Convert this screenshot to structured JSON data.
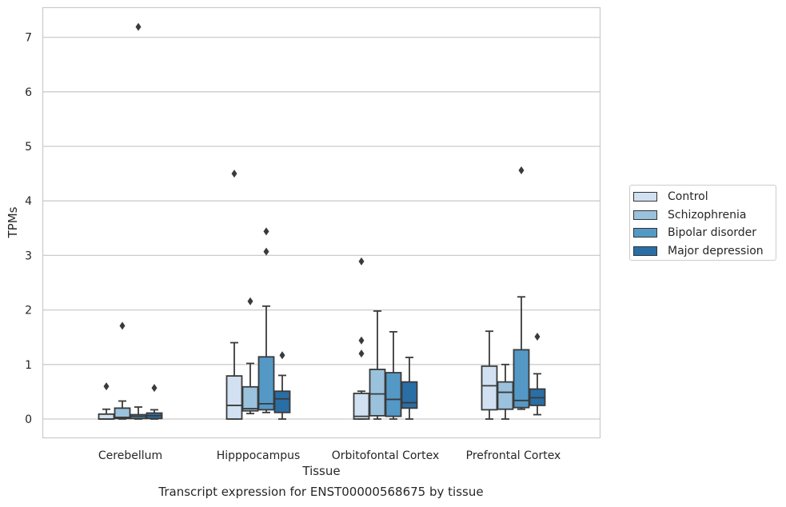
{
  "chart_data": {
    "type": "box",
    "caption": "Transcript expression for ENST00000568675 by tissue",
    "xlabel": "Tissue",
    "ylabel": "TPMs",
    "ylim": [
      -0.35,
      7.55
    ],
    "yticks": [
      0,
      1,
      2,
      3,
      4,
      5,
      6,
      7
    ],
    "grid": "horizontal",
    "legend_position": "right",
    "categories": [
      "Cerebellum",
      "Hipppocampus",
      "Orbitofontal Cortex",
      "Prefrontal Cortex"
    ],
    "series": [
      {
        "name": "Control",
        "color": "#d1e1f1",
        "boxes": [
          {
            "whisker_low": 0,
            "q1": 0,
            "median": 0,
            "q3": 0.09,
            "whisker_high": 0.18,
            "outliers": [
              0.6
            ]
          },
          {
            "whisker_low": 0,
            "q1": 0,
            "median": 0.25,
            "q3": 0.79,
            "whisker_high": 1.4,
            "outliers": [
              4.5
            ]
          },
          {
            "whisker_low": 0,
            "q1": 0,
            "median": 0.05,
            "q3": 0.47,
            "whisker_high": 0.51,
            "outliers": [
              1.2,
              1.44,
              2.89
            ]
          },
          {
            "whisker_low": 0,
            "q1": 0.17,
            "median": 0.61,
            "q3": 0.97,
            "whisker_high": 1.61,
            "outliers": []
          }
        ]
      },
      {
        "name": "Schizophrenia",
        "color": "#9ac2dd",
        "boxes": [
          {
            "whisker_low": 0,
            "q1": 0.01,
            "median": 0.03,
            "q3": 0.2,
            "whisker_high": 0.33,
            "outliers": [
              1.71
            ]
          },
          {
            "whisker_low": 0.1,
            "q1": 0.15,
            "median": 0.19,
            "q3": 0.59,
            "whisker_high": 1.02,
            "outliers": [
              2.16
            ]
          },
          {
            "whisker_low": 0,
            "q1": 0.06,
            "median": 0.46,
            "q3": 0.91,
            "whisker_high": 1.98,
            "outliers": []
          },
          {
            "whisker_low": 0,
            "q1": 0.18,
            "median": 0.49,
            "q3": 0.68,
            "whisker_high": 1.0,
            "outliers": []
          }
        ]
      },
      {
        "name": "Bipolar disorder",
        "color": "#5499c6",
        "boxes": [
          {
            "whisker_low": 0,
            "q1": 0.01,
            "median": 0.05,
            "q3": 0.08,
            "whisker_high": 0.22,
            "outliers": [
              7.19
            ]
          },
          {
            "whisker_low": 0.12,
            "q1": 0.17,
            "median": 0.28,
            "q3": 1.14,
            "whisker_high": 2.07,
            "outliers": [
              3.07,
              3.44
            ]
          },
          {
            "whisker_low": 0,
            "q1": 0.05,
            "median": 0.36,
            "q3": 0.85,
            "whisker_high": 1.6,
            "outliers": []
          },
          {
            "whisker_low": 0.18,
            "q1": 0.21,
            "median": 0.34,
            "q3": 1.27,
            "whisker_high": 2.24,
            "outliers": [
              4.56
            ]
          }
        ]
      },
      {
        "name": "Major depression",
        "color": "#2a6ea6",
        "boxes": [
          {
            "whisker_low": 0,
            "q1": 0.01,
            "median": 0.06,
            "q3": 0.11,
            "whisker_high": 0.17,
            "outliers": [
              0.57
            ]
          },
          {
            "whisker_low": 0,
            "q1": 0.12,
            "median": 0.37,
            "q3": 0.51,
            "whisker_high": 0.8,
            "outliers": [
              1.17
            ]
          },
          {
            "whisker_low": 0,
            "q1": 0.2,
            "median": 0.3,
            "q3": 0.68,
            "whisker_high": 1.13,
            "outliers": []
          },
          {
            "whisker_low": 0.08,
            "q1": 0.25,
            "median": 0.39,
            "q3": 0.55,
            "whisker_high": 0.83,
            "outliers": [
              1.51
            ]
          }
        ]
      }
    ]
  }
}
